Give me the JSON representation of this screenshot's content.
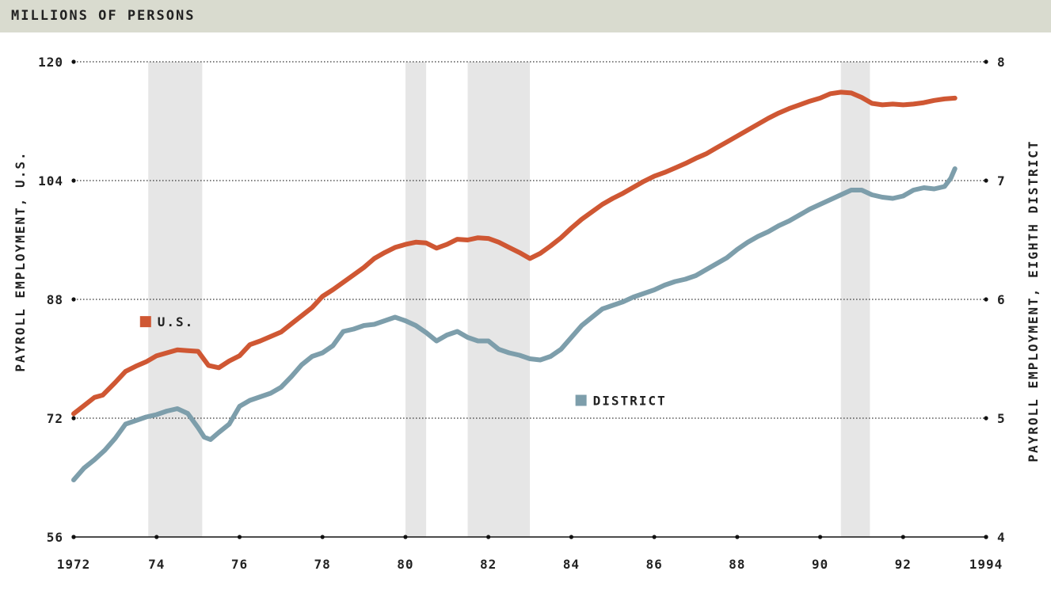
{
  "header": {
    "label": "MILLIONS OF PERSONS"
  },
  "chart_data": {
    "type": "line",
    "ylabel_left": "PAYROLL EMPLOYMENT, U.S.",
    "ylabel_right": "PAYROLL EMPLOYMENT, EIGHTH DISTRICT",
    "xlim": [
      1972,
      1994
    ],
    "ylim_left": [
      56,
      120
    ],
    "ylim_right": [
      4,
      8
    ],
    "x_ticks": [
      1972,
      1974,
      1976,
      1978,
      1980,
      1982,
      1984,
      1986,
      1988,
      1990,
      1992,
      1994
    ],
    "x_tick_labels": [
      "1972",
      "74",
      "76",
      "78",
      "80",
      "82",
      "84",
      "86",
      "88",
      "90",
      "92",
      "1994"
    ],
    "y_left_ticks": [
      56,
      72,
      88,
      104,
      120
    ],
    "y_right_ticks": [
      4,
      5,
      6,
      7,
      8
    ],
    "y_right_tick_labels": [
      "4",
      "5",
      "6",
      "7",
      "8"
    ],
    "grid": true,
    "recessions": [
      [
        1973.8,
        1975.1
      ],
      [
        1980.0,
        1980.5
      ],
      [
        1981.5,
        1983.0
      ],
      [
        1990.5,
        1991.2
      ]
    ],
    "series": [
      {
        "name": "U.S.",
        "axis": "left",
        "color": "#cf5733",
        "x": [
          1972.0,
          1972.25,
          1972.5,
          1972.7,
          1973.0,
          1973.25,
          1973.5,
          1973.75,
          1974.0,
          1974.25,
          1974.5,
          1974.75,
          1975.0,
          1975.25,
          1975.5,
          1975.75,
          1976.0,
          1976.25,
          1976.5,
          1976.75,
          1977.0,
          1977.25,
          1977.5,
          1977.75,
          1978.0,
          1978.25,
          1978.5,
          1978.75,
          1979.0,
          1979.25,
          1979.5,
          1979.75,
          1980.0,
          1980.25,
          1980.5,
          1980.75,
          1981.0,
          1981.25,
          1981.5,
          1981.75,
          1982.0,
          1982.25,
          1982.5,
          1982.75,
          1983.0,
          1983.25,
          1983.5,
          1983.75,
          1984.0,
          1984.25,
          1984.5,
          1984.75,
          1985.0,
          1985.25,
          1985.5,
          1985.75,
          1986.0,
          1986.25,
          1986.5,
          1986.75,
          1987.0,
          1987.25,
          1987.5,
          1987.75,
          1988.0,
          1988.25,
          1988.5,
          1988.75,
          1989.0,
          1989.25,
          1989.5,
          1989.75,
          1990.0,
          1990.25,
          1990.5,
          1990.75,
          1991.0,
          1991.25,
          1991.5,
          1991.75,
          1992.0,
          1992.25,
          1992.5,
          1992.75,
          1993.0,
          1993.25
        ],
        "values": [
          72.6,
          73.7,
          74.8,
          75.1,
          76.8,
          78.3,
          79.0,
          79.6,
          80.4,
          80.8,
          81.2,
          81.1,
          81.0,
          79.1,
          78.8,
          79.7,
          80.4,
          81.9,
          82.4,
          83.0,
          83.6,
          84.7,
          85.8,
          86.9,
          88.4,
          89.3,
          90.3,
          91.3,
          92.3,
          93.5,
          94.3,
          95.0,
          95.4,
          95.7,
          95.6,
          94.9,
          95.4,
          96.1,
          96.0,
          96.3,
          96.2,
          95.7,
          95.0,
          94.3,
          93.5,
          94.2,
          95.2,
          96.3,
          97.6,
          98.8,
          99.8,
          100.8,
          101.6,
          102.3,
          103.1,
          103.9,
          104.6,
          105.1,
          105.7,
          106.3,
          107.0,
          107.6,
          108.4,
          109.2,
          110.0,
          110.8,
          111.6,
          112.4,
          113.1,
          113.7,
          114.2,
          114.7,
          115.1,
          115.7,
          115.9,
          115.8,
          115.2,
          114.4,
          114.2,
          114.3,
          114.2,
          114.3,
          114.5,
          114.8,
          115.0,
          115.1
        ]
      },
      {
        "name": "DISTRICT",
        "axis": "right",
        "color": "#7d9eab",
        "x": [
          1972.0,
          1972.25,
          1972.5,
          1972.75,
          1973.0,
          1973.25,
          1973.5,
          1973.75,
          1974.0,
          1974.25,
          1974.5,
          1974.75,
          1975.0,
          1975.15,
          1975.3,
          1975.5,
          1975.75,
          1976.0,
          1976.25,
          1976.5,
          1976.75,
          1977.0,
          1977.25,
          1977.5,
          1977.75,
          1978.0,
          1978.25,
          1978.5,
          1978.75,
          1979.0,
          1979.25,
          1979.5,
          1979.75,
          1980.0,
          1980.25,
          1980.5,
          1980.75,
          1981.0,
          1981.25,
          1981.5,
          1981.75,
          1982.0,
          1982.25,
          1982.5,
          1982.75,
          1983.0,
          1983.25,
          1983.5,
          1983.75,
          1984.0,
          1984.25,
          1984.5,
          1984.75,
          1985.0,
          1985.25,
          1985.5,
          1985.75,
          1986.0,
          1986.25,
          1986.5,
          1986.75,
          1987.0,
          1987.25,
          1987.5,
          1987.75,
          1988.0,
          1988.25,
          1988.5,
          1988.75,
          1989.0,
          1989.25,
          1989.5,
          1989.75,
          1990.0,
          1990.25,
          1990.5,
          1990.75,
          1991.0,
          1991.25,
          1991.5,
          1991.75,
          1992.0,
          1992.25,
          1992.5,
          1992.75,
          1993.0,
          1993.15,
          1993.25
        ],
        "values": [
          4.48,
          4.58,
          4.65,
          4.73,
          4.83,
          4.95,
          4.98,
          5.01,
          5.03,
          5.06,
          5.08,
          5.04,
          4.92,
          4.84,
          4.82,
          4.88,
          4.95,
          5.1,
          5.15,
          5.18,
          5.21,
          5.26,
          5.35,
          5.45,
          5.52,
          5.55,
          5.61,
          5.73,
          5.75,
          5.78,
          5.79,
          5.82,
          5.85,
          5.82,
          5.78,
          5.72,
          5.65,
          5.7,
          5.73,
          5.68,
          5.65,
          5.65,
          5.58,
          5.55,
          5.53,
          5.5,
          5.49,
          5.52,
          5.58,
          5.68,
          5.78,
          5.85,
          5.92,
          5.95,
          5.98,
          6.02,
          6.05,
          6.08,
          6.12,
          6.15,
          6.17,
          6.2,
          6.25,
          6.3,
          6.35,
          6.42,
          6.48,
          6.53,
          6.57,
          6.62,
          6.66,
          6.71,
          6.76,
          6.8,
          6.84,
          6.88,
          6.92,
          6.92,
          6.88,
          6.86,
          6.85,
          6.87,
          6.92,
          6.94,
          6.93,
          6.95,
          7.02,
          7.1
        ]
      }
    ],
    "legend": [
      {
        "label": "U.S.",
        "color": "#cf5733",
        "x": 1973.6,
        "y_left": 85.0
      },
      {
        "label": "DISTRICT",
        "color": "#7d9eab",
        "x": 1984.1,
        "y_left": 74.4
      }
    ]
  }
}
